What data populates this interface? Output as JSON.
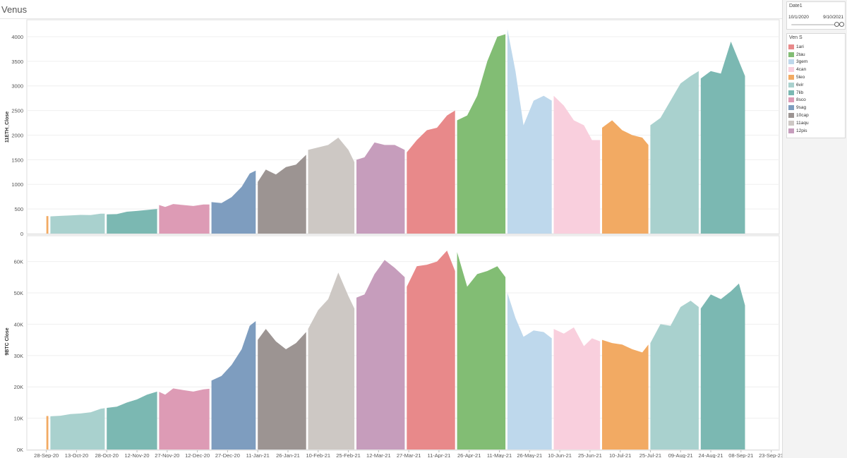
{
  "dashboard_title": "Venus",
  "filter": {
    "title": "Date1",
    "range_start": "10/1/2020",
    "range_end": "9/10/2021"
  },
  "legend": {
    "title": "Ven S",
    "items": [
      {
        "label": "1ari",
        "color": "#e8898a"
      },
      {
        "label": "2tau",
        "color": "#82bd74"
      },
      {
        "label": "3gem",
        "color": "#bed8ec"
      },
      {
        "label": "4can",
        "color": "#f9cfdd"
      },
      {
        "label": "5leo",
        "color": "#f2aa63"
      },
      {
        "label": "6vir",
        "color": "#a9d1ce"
      },
      {
        "label": "7lib",
        "color": "#7bb8b2"
      },
      {
        "label": "8sco",
        "color": "#dd9bb5"
      },
      {
        "label": "9sag",
        "color": "#7e9dbf"
      },
      {
        "label": "10cap",
        "color": "#9c9492"
      },
      {
        "label": "11aqu",
        "color": "#cdc8c4"
      },
      {
        "label": "12pis",
        "color": "#c69dbc"
      }
    ]
  },
  "chart_data": [
    {
      "type": "area",
      "ylabel": "11ETH_Close",
      "ylim": [
        0,
        4200
      ],
      "yticks": [
        0,
        500,
        1000,
        1500,
        2000,
        2500,
        3000,
        3500,
        4000
      ],
      "ytick_labels": [
        "0",
        "500",
        "1000",
        "1500",
        "2000",
        "2500",
        "3000",
        "3500",
        "4000"
      ],
      "segments": [
        {
          "sign": "5leo",
          "x": [
            "2020-09-28",
            "2020-09-29"
          ],
          "y": [
            355,
            355
          ]
        },
        {
          "sign": "6vir",
          "x": [
            "2020-09-30",
            "2020-10-05",
            "2020-10-10",
            "2020-10-15",
            "2020-10-20",
            "2020-10-25",
            "2020-10-27"
          ],
          "y": [
            350,
            360,
            370,
            380,
            375,
            405,
            405
          ]
        },
        {
          "sign": "7lib",
          "x": [
            "2020-10-28",
            "2020-11-02",
            "2020-11-07",
            "2020-11-12",
            "2020-11-17",
            "2020-11-22"
          ],
          "y": [
            390,
            395,
            445,
            460,
            480,
            500
          ]
        },
        {
          "sign": "8sco",
          "x": [
            "2020-11-23",
            "2020-11-26",
            "2020-11-30",
            "2020-12-05",
            "2020-12-10",
            "2020-12-15",
            "2020-12-18"
          ],
          "y": [
            580,
            540,
            600,
            580,
            560,
            590,
            590
          ]
        },
        {
          "sign": "9sag",
          "x": [
            "2020-12-19",
            "2020-12-24",
            "2020-12-29",
            "2021-01-03",
            "2021-01-07",
            "2021-01-10"
          ],
          "y": [
            640,
            620,
            740,
            950,
            1220,
            1280
          ]
        },
        {
          "sign": "10cap",
          "x": [
            "2021-01-11",
            "2021-01-15",
            "2021-01-20",
            "2021-01-25",
            "2021-01-30",
            "2021-02-04"
          ],
          "y": [
            1050,
            1300,
            1200,
            1350,
            1400,
            1600
          ]
        },
        {
          "sign": "11aqu",
          "x": [
            "2021-02-05",
            "2021-02-10",
            "2021-02-15",
            "2021-02-20",
            "2021-02-25",
            "2021-02-28"
          ],
          "y": [
            1700,
            1750,
            1800,
            1950,
            1700,
            1450
          ]
        },
        {
          "sign": "12pis",
          "x": [
            "2021-03-01",
            "2021-03-05",
            "2021-03-10",
            "2021-03-15",
            "2021-03-20",
            "2021-03-25"
          ],
          "y": [
            1500,
            1550,
            1850,
            1800,
            1800,
            1700
          ]
        },
        {
          "sign": "1ari",
          "x": [
            "2021-03-26",
            "2021-03-31",
            "2021-04-05",
            "2021-04-10",
            "2021-04-15",
            "2021-04-19"
          ],
          "y": [
            1650,
            1900,
            2100,
            2150,
            2400,
            2500
          ]
        },
        {
          "sign": "2tau",
          "x": [
            "2021-04-20",
            "2021-04-25",
            "2021-04-30",
            "2021-05-05",
            "2021-05-10",
            "2021-05-14"
          ],
          "y": [
            2300,
            2400,
            2800,
            3500,
            4000,
            4050
          ]
        },
        {
          "sign": "3gem",
          "x": [
            "2021-05-15",
            "2021-05-19",
            "2021-05-23",
            "2021-05-28",
            "2021-06-02",
            "2021-06-06"
          ],
          "y": [
            4150,
            3300,
            2200,
            2700,
            2800,
            2700
          ]
        },
        {
          "sign": "4can",
          "x": [
            "2021-06-07",
            "2021-06-12",
            "2021-06-17",
            "2021-06-22",
            "2021-06-26",
            "2021-06-30"
          ],
          "y": [
            2800,
            2600,
            2300,
            2200,
            1900,
            1900
          ]
        },
        {
          "sign": "5leo",
          "x": [
            "2021-07-01",
            "2021-07-06",
            "2021-07-11",
            "2021-07-16",
            "2021-07-21",
            "2021-07-24"
          ],
          "y": [
            2150,
            2300,
            2100,
            2000,
            1950,
            1800
          ]
        },
        {
          "sign": "6vir",
          "x": [
            "2021-07-25",
            "2021-07-30",
            "2021-08-04",
            "2021-08-09",
            "2021-08-14",
            "2021-08-18"
          ],
          "y": [
            2200,
            2350,
            2700,
            3050,
            3200,
            3300
          ]
        },
        {
          "sign": "7lib",
          "x": [
            "2021-08-19",
            "2021-08-24",
            "2021-08-29",
            "2021-09-03",
            "2021-09-07",
            "2021-09-10"
          ],
          "y": [
            3150,
            3300,
            3250,
            3900,
            3500,
            3200
          ]
        }
      ]
    },
    {
      "type": "area",
      "ylabel": "9BTC Close",
      "ylim": [
        0,
        66000
      ],
      "yticks": [
        0,
        10000,
        20000,
        30000,
        40000,
        50000,
        60000
      ],
      "ytick_labels": [
        "0K",
        "10K",
        "20K",
        "30K",
        "40K",
        "50K",
        "60K"
      ],
      "segments": [
        {
          "sign": "5leo",
          "x": [
            "2020-09-28",
            "2020-09-29"
          ],
          "y": [
            10700,
            10700
          ]
        },
        {
          "sign": "6vir",
          "x": [
            "2020-09-30",
            "2020-10-05",
            "2020-10-10",
            "2020-10-15",
            "2020-10-20",
            "2020-10-25",
            "2020-10-27"
          ],
          "y": [
            10600,
            10800,
            11300,
            11500,
            11900,
            13000,
            13200
          ]
        },
        {
          "sign": "7lib",
          "x": [
            "2020-10-28",
            "2020-11-02",
            "2020-11-07",
            "2020-11-12",
            "2020-11-17",
            "2020-11-22"
          ],
          "y": [
            13300,
            13700,
            15000,
            16000,
            17500,
            18500
          ]
        },
        {
          "sign": "8sco",
          "x": [
            "2020-11-23",
            "2020-11-26",
            "2020-11-30",
            "2020-12-05",
            "2020-12-10",
            "2020-12-15",
            "2020-12-18"
          ],
          "y": [
            18400,
            17500,
            19500,
            19000,
            18500,
            19200,
            19400
          ]
        },
        {
          "sign": "9sag",
          "x": [
            "2020-12-19",
            "2020-12-24",
            "2020-12-29",
            "2021-01-03",
            "2021-01-07",
            "2021-01-10"
          ],
          "y": [
            22000,
            23500,
            27000,
            32000,
            39500,
            41000
          ]
        },
        {
          "sign": "10cap",
          "x": [
            "2021-01-11",
            "2021-01-15",
            "2021-01-20",
            "2021-01-25",
            "2021-01-30",
            "2021-02-04"
          ],
          "y": [
            35000,
            38500,
            34500,
            32000,
            34000,
            37500
          ]
        },
        {
          "sign": "11aqu",
          "x": [
            "2021-02-05",
            "2021-02-10",
            "2021-02-15",
            "2021-02-20",
            "2021-02-25",
            "2021-02-28"
          ],
          "y": [
            38500,
            44500,
            48000,
            56500,
            49000,
            45000
          ]
        },
        {
          "sign": "12pis",
          "x": [
            "2021-03-01",
            "2021-03-05",
            "2021-03-10",
            "2021-03-15",
            "2021-03-20",
            "2021-03-25"
          ],
          "y": [
            48500,
            49500,
            56000,
            60500,
            58000,
            55000
          ]
        },
        {
          "sign": "1ari",
          "x": [
            "2021-03-26",
            "2021-03-31",
            "2021-04-05",
            "2021-04-10",
            "2021-04-15",
            "2021-04-19"
          ],
          "y": [
            52000,
            58500,
            59000,
            60000,
            63500,
            57000
          ]
        },
        {
          "sign": "2tau",
          "x": [
            "2021-04-20",
            "2021-04-25",
            "2021-04-30",
            "2021-05-05",
            "2021-05-10",
            "2021-05-14"
          ],
          "y": [
            63000,
            52000,
            56000,
            57000,
            58500,
            55000
          ]
        },
        {
          "sign": "3gem",
          "x": [
            "2021-05-15",
            "2021-05-19",
            "2021-05-23",
            "2021-05-28",
            "2021-06-02",
            "2021-06-06"
          ],
          "y": [
            50000,
            42000,
            36000,
            38000,
            37500,
            35500
          ]
        },
        {
          "sign": "4can",
          "x": [
            "2021-06-07",
            "2021-06-12",
            "2021-06-17",
            "2021-06-22",
            "2021-06-26",
            "2021-06-30"
          ],
          "y": [
            38500,
            37000,
            39000,
            33000,
            35500,
            34500
          ]
        },
        {
          "sign": "5leo",
          "x": [
            "2021-07-01",
            "2021-07-06",
            "2021-07-11",
            "2021-07-16",
            "2021-07-21",
            "2021-07-24"
          ],
          "y": [
            35000,
            34000,
            33500,
            32000,
            31000,
            33500
          ]
        },
        {
          "sign": "6vir",
          "x": [
            "2021-07-25",
            "2021-07-30",
            "2021-08-04",
            "2021-08-09",
            "2021-08-14",
            "2021-08-18"
          ],
          "y": [
            34000,
            40000,
            39500,
            45500,
            47500,
            45500
          ]
        },
        {
          "sign": "7lib",
          "x": [
            "2021-08-19",
            "2021-08-24",
            "2021-08-29",
            "2021-09-03",
            "2021-09-07",
            "2021-09-10"
          ],
          "y": [
            45000,
            49500,
            48000,
            50500,
            53000,
            46000
          ]
        }
      ]
    }
  ],
  "x_axis": {
    "range": [
      "2020-09-19",
      "2021-09-27"
    ],
    "ticks": [
      {
        "date": "2020-09-28",
        "label": "28-Sep-20"
      },
      {
        "date": "2020-10-13",
        "label": "13-Oct-20"
      },
      {
        "date": "2020-10-28",
        "label": "28-Oct-20"
      },
      {
        "date": "2020-11-12",
        "label": "12-Nov-20"
      },
      {
        "date": "2020-11-27",
        "label": "27-Nov-20"
      },
      {
        "date": "2020-12-12",
        "label": "12-Dec-20"
      },
      {
        "date": "2020-12-27",
        "label": "27-Dec-20"
      },
      {
        "date": "2021-01-11",
        "label": "11-Jan-21"
      },
      {
        "date": "2021-01-26",
        "label": "26-Jan-21"
      },
      {
        "date": "2021-02-10",
        "label": "10-Feb-21"
      },
      {
        "date": "2021-02-25",
        "label": "25-Feb-21"
      },
      {
        "date": "2021-03-12",
        "label": "12-Mar-21"
      },
      {
        "date": "2021-03-27",
        "label": "27-Mar-21"
      },
      {
        "date": "2021-04-11",
        "label": "11-Apr-21"
      },
      {
        "date": "2021-04-26",
        "label": "26-Apr-21"
      },
      {
        "date": "2021-05-11",
        "label": "11-May-21"
      },
      {
        "date": "2021-05-26",
        "label": "26-May-21"
      },
      {
        "date": "2021-06-10",
        "label": "10-Jun-21"
      },
      {
        "date": "2021-06-25",
        "label": "25-Jun-21"
      },
      {
        "date": "2021-07-10",
        "label": "10-Jul-21"
      },
      {
        "date": "2021-07-25",
        "label": "25-Jul-21"
      },
      {
        "date": "2021-08-09",
        "label": "09-Aug-21"
      },
      {
        "date": "2021-08-24",
        "label": "24-Aug-21"
      },
      {
        "date": "2021-09-08",
        "label": "08-Sep-21"
      },
      {
        "date": "2021-09-23",
        "label": "23-Sep-21"
      }
    ]
  }
}
